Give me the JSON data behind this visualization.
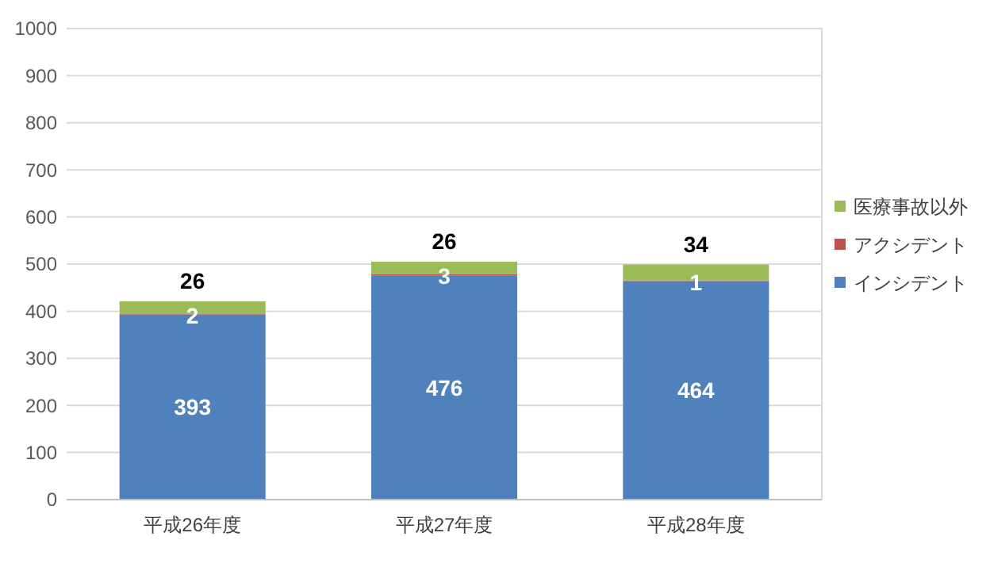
{
  "chart_data": {
    "type": "bar",
    "stacked": true,
    "categories": [
      "平成26年度",
      "平成27年度",
      "平成28年度"
    ],
    "series": [
      {
        "name": "インシデント",
        "color": "#4f81bd",
        "values": [
          393,
          476,
          464
        ]
      },
      {
        "name": "アクシデント",
        "color": "#c0504d",
        "values": [
          2,
          3,
          1
        ]
      },
      {
        "name": "医療事故以外",
        "color": "#9bbb59",
        "values": [
          26,
          26,
          34
        ]
      }
    ],
    "ylim": [
      0,
      1000
    ],
    "yticks": [
      0,
      100,
      200,
      300,
      400,
      500,
      600,
      700,
      800,
      900,
      1000
    ],
    "grid": "y",
    "legend": "right",
    "data_labels": true
  }
}
